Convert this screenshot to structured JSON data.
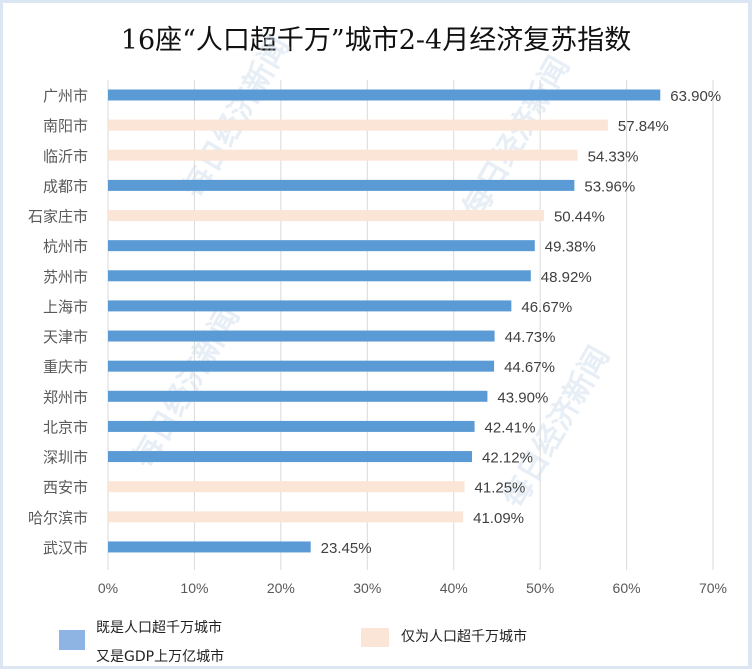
{
  "chart_data": {
    "type": "bar",
    "orientation": "horizontal",
    "title": "16座“人口超千万”城市2-4月经济复苏指数",
    "categories": [
      "广州市",
      "南阳市",
      "临沂市",
      "成都市",
      "石家庄市",
      "杭州市",
      "苏州市",
      "上海市",
      "天津市",
      "重庆市",
      "郑州市",
      "北京市",
      "深圳市",
      "西安市",
      "哈尔滨市",
      "武汉市"
    ],
    "values": [
      63.9,
      57.84,
      54.33,
      53.96,
      50.44,
      49.38,
      48.92,
      46.67,
      44.73,
      44.67,
      43.9,
      42.41,
      42.12,
      41.25,
      41.09,
      23.45
    ],
    "value_labels": [
      "63.90%",
      "57.84%",
      "54.33%",
      "53.96%",
      "50.44%",
      "49.38%",
      "48.92%",
      "46.67%",
      "44.73%",
      "44.67%",
      "43.90%",
      "42.41%",
      "42.12%",
      "41.25%",
      "41.09%",
      "23.45%"
    ],
    "group": [
      "a",
      "b",
      "b",
      "a",
      "b",
      "a",
      "a",
      "a",
      "a",
      "a",
      "a",
      "a",
      "a",
      "b",
      "b",
      "a"
    ],
    "xlim": [
      0,
      70
    ],
    "xticks": [
      "0%",
      "10%",
      "20%",
      "30%",
      "40%",
      "50%",
      "60%",
      "70%"
    ],
    "grid": true,
    "legend_placement": "bottom",
    "legend": [
      {
        "key": "a",
        "lines": [
          "既是人口超千万城市",
          "又是GDP上万亿城市"
        ],
        "color": "#8eb4e3"
      },
      {
        "key": "b",
        "lines": [
          "仅为人口超千万城市"
        ],
        "color": "#fbe5d6"
      }
    ],
    "colors": {
      "a": "#5b9bd5",
      "b": "#fbe5d6",
      "grid": "#d9d9d9"
    }
  },
  "watermark": "每日经济新闻"
}
